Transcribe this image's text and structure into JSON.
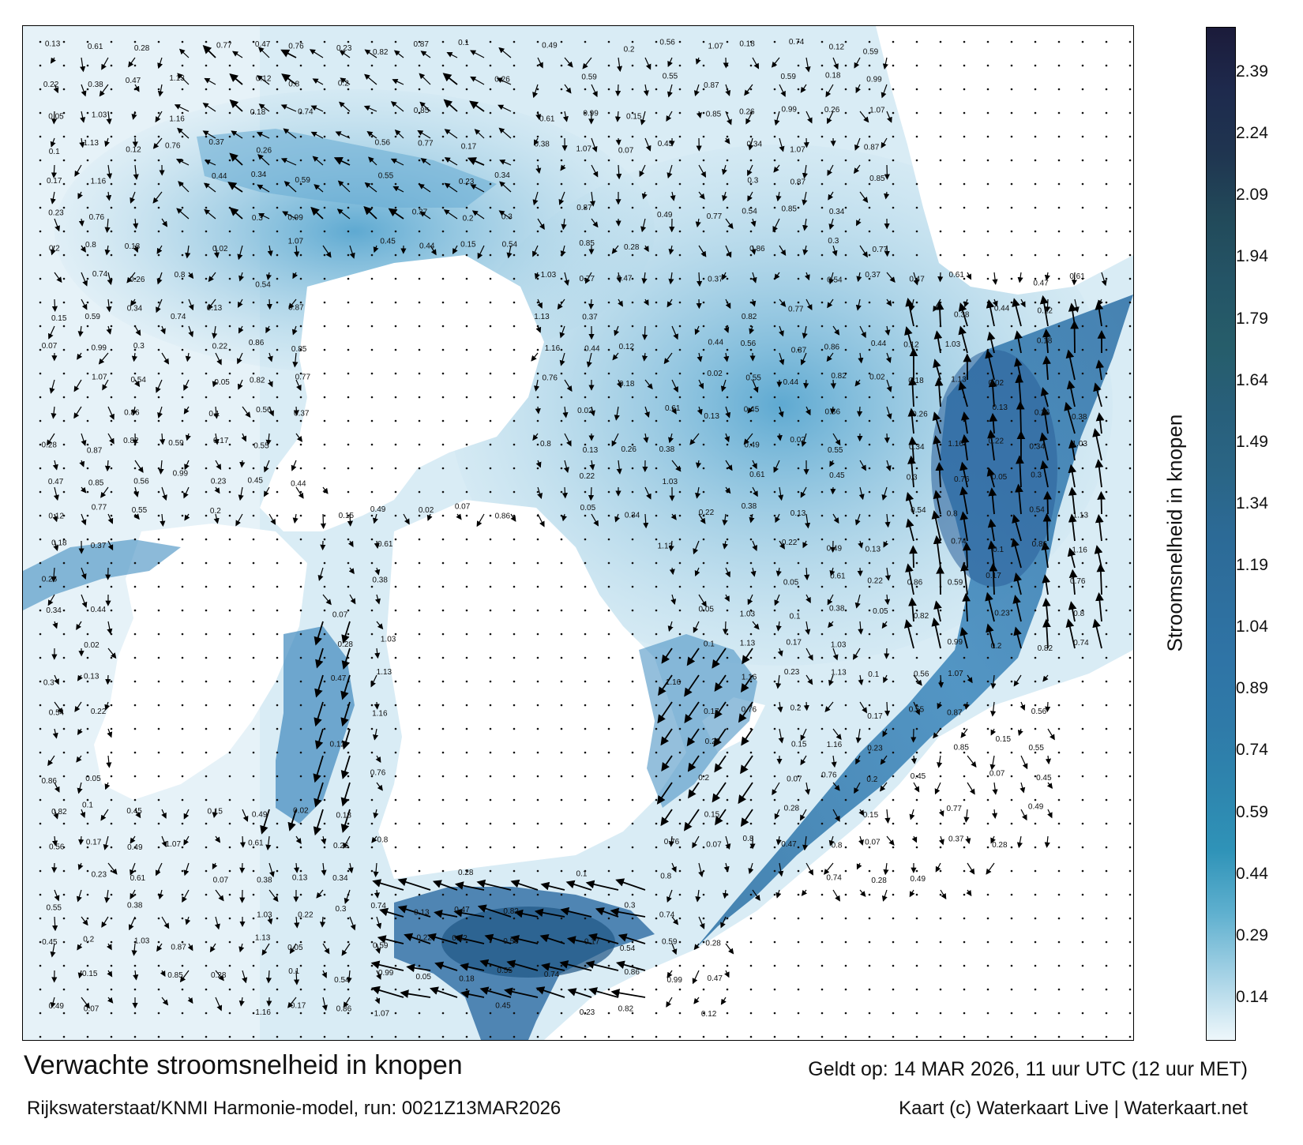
{
  "map": {
    "title": "Verwachte stroomsnelheid in knopen",
    "model_info": "Rijkswaterstaat/KNMI Harmonie-model, run: 0021Z13MAR2026",
    "valid_time": "Geldt op: 14 MAR 2026, 11 uur UTC (12 uur MET)",
    "credit": "Kaart (c) Waterkaart Live | Waterkaart.net"
  },
  "legend": {
    "label": "Stroomsnelheid in knopen",
    "ticks": [
      "2.39",
      "2.24",
      "2.09",
      "1.94",
      "1.79",
      "1.64",
      "1.49",
      "1.34",
      "1.19",
      "1.04",
      "0.89",
      "0.74",
      "0.59",
      "0.44",
      "0.29",
      "0.14"
    ],
    "colors": [
      "#1b1b3a",
      "#1e2a4d",
      "#1f3550",
      "#224a5a",
      "#245466",
      "#265d6a",
      "#285f7a",
      "#2a6585",
      "#2c6a96",
      "#2e6f9e",
      "#2f74a6",
      "#2f7aa8",
      "#2e85ae",
      "#2f93b8",
      "#5fb0cf",
      "#a7d3e6",
      "#eef7fb"
    ]
  },
  "current_labels": [
    {
      "text": "0.13"
    },
    {
      "text": "0.22"
    },
    {
      "text": "0.05"
    },
    {
      "text": "0.1"
    },
    {
      "text": "0.17"
    },
    {
      "text": "0.23"
    },
    {
      "text": "0.2"
    },
    {
      "text": "0.15"
    },
    {
      "text": "0.07"
    },
    {
      "text": "0.28"
    },
    {
      "text": "0.47"
    },
    {
      "text": "0.12"
    },
    {
      "text": "0.18"
    },
    {
      "text": "0.26"
    },
    {
      "text": "0.34"
    },
    {
      "text": "0.3"
    },
    {
      "text": "0.54"
    },
    {
      "text": "0.86"
    },
    {
      "text": "0.82"
    },
    {
      "text": "0.56"
    },
    {
      "text": "0.55"
    },
    {
      "text": "0.45"
    },
    {
      "text": "0.49"
    },
    {
      "text": "0.61"
    },
    {
      "text": "0.38"
    },
    {
      "text": "1.03"
    },
    {
      "text": "1.13"
    },
    {
      "text": "1.16"
    },
    {
      "text": "0.76"
    },
    {
      "text": "0.8"
    },
    {
      "text": "0.74"
    },
    {
      "text": "0.59"
    },
    {
      "text": "0.99"
    },
    {
      "text": "1.07"
    },
    {
      "text": "0.87"
    },
    {
      "text": "0.85"
    },
    {
      "text": "0.77"
    },
    {
      "text": "0.37"
    },
    {
      "text": "0.44"
    },
    {
      "text": "0.02"
    }
  ]
}
